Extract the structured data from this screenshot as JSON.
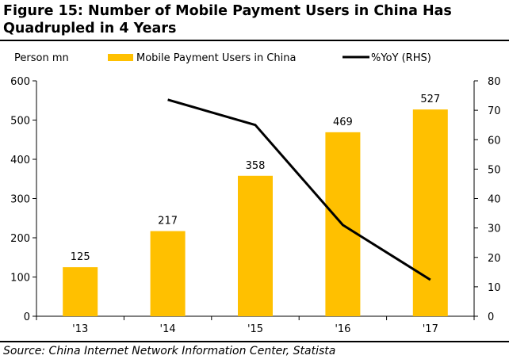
{
  "title": "Figure 15: Number of Mobile Payment Users in China Has\nQuadrupled in 4 Years",
  "source": "Source: China Internet Network Information Center, Statista",
  "colors": {
    "bar": "#FFC000",
    "line": "#000000"
  },
  "chart_data": {
    "type": "bar+line",
    "categories": [
      "'13",
      "'14",
      "'15",
      "'16",
      "'17"
    ],
    "y_left_label": "Person mn",
    "y_left_range": [
      0,
      600
    ],
    "y_left_ticks": [
      0,
      100,
      200,
      300,
      400,
      500,
      600
    ],
    "y_right_range": [
      0,
      80
    ],
    "y_right_ticks": [
      0,
      10,
      20,
      30,
      40,
      50,
      60,
      70,
      80
    ],
    "legend_position": "top",
    "grid": false,
    "series": [
      {
        "name": "Mobile Payment Users in China",
        "type": "bar",
        "axis": "left",
        "values": [
          125,
          217,
          358,
          469,
          527
        ],
        "data_labels": [
          "125",
          "217",
          "358",
          "469",
          "527"
        ]
      },
      {
        "name": "%YoY (RHS)",
        "type": "line",
        "axis": "right",
        "values": [
          null,
          73.6,
          65.0,
          31.0,
          12.4
        ]
      }
    ]
  }
}
